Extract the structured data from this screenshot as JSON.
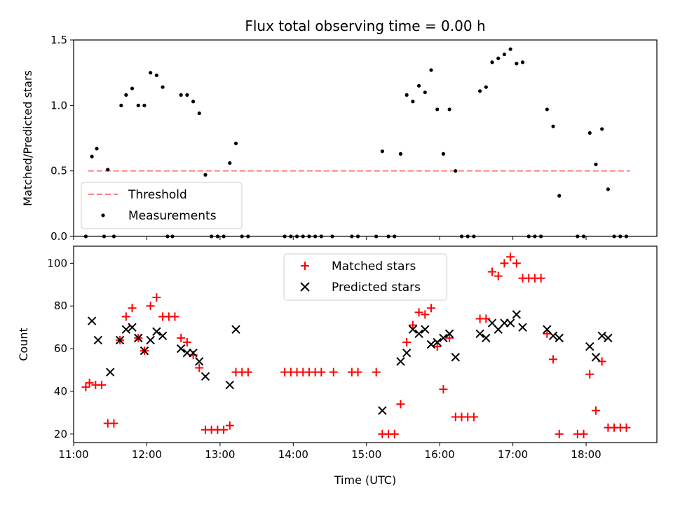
{
  "chart_data": [
    {
      "type": "scatter",
      "title": "Flux total observing time = 0.00 h",
      "xlabel": "",
      "ylabel": "Matched/Predicted stars",
      "ylim": [
        0,
        1.5
      ],
      "yticks": [
        "0.0",
        "0.5",
        "1.0",
        "1.5"
      ],
      "xlim": [
        "11:00",
        "18:58"
      ],
      "x_unit": "time (UTC, HH:MM)",
      "grid": false,
      "legend_position": "lower-left",
      "series": [
        {
          "name": "Threshold",
          "style": "dashed line",
          "color": "#ff7f7f",
          "x": [
            "11:12",
            "18:36"
          ],
          "y": [
            0.5,
            0.5
          ]
        },
        {
          "name": "Measurements",
          "style": "point",
          "color": "#000000",
          "points": [
            [
              "11:10",
              0.0
            ],
            [
              "11:15",
              0.61
            ],
            [
              "11:19",
              0.67
            ],
            [
              "11:25",
              0.0
            ],
            [
              "11:28",
              0.51
            ],
            [
              "11:33",
              0.0
            ],
            [
              "11:39",
              1.0
            ],
            [
              "11:43",
              1.08
            ],
            [
              "11:48",
              1.13
            ],
            [
              "11:53",
              1.0
            ],
            [
              "11:58",
              1.0
            ],
            [
              "12:03",
              1.25
            ],
            [
              "12:08",
              1.23
            ],
            [
              "12:13",
              1.14
            ],
            [
              "12:17",
              0.0
            ],
            [
              "12:21",
              0.0
            ],
            [
              "12:28",
              1.08
            ],
            [
              "12:33",
              1.08
            ],
            [
              "12:38",
              1.03
            ],
            [
              "12:43",
              0.94
            ],
            [
              "12:48",
              0.47
            ],
            [
              "12:53",
              0.0
            ],
            [
              "12:58",
              0.0
            ],
            [
              "13:03",
              0.0
            ],
            [
              "13:08",
              0.56
            ],
            [
              "13:13",
              0.71
            ],
            [
              "13:18",
              0.0
            ],
            [
              "13:23",
              0.0
            ],
            [
              "13:53",
              0.0
            ],
            [
              "13:58",
              0.0
            ],
            [
              "14:03",
              0.0
            ],
            [
              "14:08",
              0.0
            ],
            [
              "14:13",
              0.0
            ],
            [
              "14:18",
              0.0
            ],
            [
              "14:23",
              0.0
            ],
            [
              "14:32",
              0.0
            ],
            [
              "14:48",
              0.0
            ],
            [
              "14:53",
              0.0
            ],
            [
              "15:08",
              0.0
            ],
            [
              "15:13",
              0.65
            ],
            [
              "15:18",
              0.0
            ],
            [
              "15:23",
              0.0
            ],
            [
              "15:28",
              0.63
            ],
            [
              "15:33",
              1.08
            ],
            [
              "15:38",
              1.03
            ],
            [
              "15:43",
              1.15
            ],
            [
              "15:48",
              1.1
            ],
            [
              "15:53",
              1.27
            ],
            [
              "15:58",
              0.97
            ],
            [
              "16:03",
              0.63
            ],
            [
              "16:08",
              0.97
            ],
            [
              "16:13",
              0.5
            ],
            [
              "16:18",
              0.0
            ],
            [
              "16:23",
              0.0
            ],
            [
              "16:28",
              0.0
            ],
            [
              "16:33",
              1.11
            ],
            [
              "16:38",
              1.14
            ],
            [
              "16:43",
              1.33
            ],
            [
              "16:48",
              1.36
            ],
            [
              "16:53",
              1.39
            ],
            [
              "16:58",
              1.43
            ],
            [
              "17:03",
              1.32
            ],
            [
              "17:08",
              1.33
            ],
            [
              "17:13",
              0.0
            ],
            [
              "17:18",
              0.0
            ],
            [
              "17:23",
              0.0
            ],
            [
              "17:28",
              0.97
            ],
            [
              "17:33",
              0.84
            ],
            [
              "17:38",
              0.31
            ],
            [
              "17:53",
              0.0
            ],
            [
              "17:58",
              0.0
            ],
            [
              "18:03",
              0.79
            ],
            [
              "18:08",
              0.55
            ],
            [
              "18:13",
              0.82
            ],
            [
              "18:18",
              0.36
            ],
            [
              "18:23",
              0.0
            ],
            [
              "18:28",
              0.0
            ],
            [
              "18:33",
              0.0
            ]
          ]
        }
      ]
    },
    {
      "type": "scatter",
      "title": "",
      "xlabel": "Time (UTC)",
      "ylabel": "Count",
      "ylim": [
        16,
        108
      ],
      "yticks": [
        "20",
        "40",
        "60",
        "80",
        "100"
      ],
      "xlim": [
        "11:00",
        "18:58"
      ],
      "xticks": [
        "11:00",
        "12:00",
        "13:00",
        "14:00",
        "15:00",
        "16:00",
        "17:00",
        "18:00"
      ],
      "grid": false,
      "legend_position": "top-center",
      "series": [
        {
          "name": "Matched stars",
          "marker": "plus",
          "color": "#ff0000",
          "points": [
            [
              "11:10",
              42
            ],
            [
              "11:13",
              44
            ],
            [
              "11:18",
              43
            ],
            [
              "11:23",
              43
            ],
            [
              "11:28",
              25
            ],
            [
              "11:33",
              25
            ],
            [
              "11:38",
              64
            ],
            [
              "11:43",
              75
            ],
            [
              "11:48",
              79
            ],
            [
              "11:53",
              65
            ],
            [
              "11:58",
              59
            ],
            [
              "12:03",
              80
            ],
            [
              "12:08",
              84
            ],
            [
              "12:13",
              75
            ],
            [
              "12:18",
              75
            ],
            [
              "12:23",
              75
            ],
            [
              "12:28",
              65
            ],
            [
              "12:33",
              63
            ],
            [
              "12:38",
              57
            ],
            [
              "12:43",
              51
            ],
            [
              "12:48",
              22
            ],
            [
              "12:53",
              22
            ],
            [
              "12:58",
              22
            ],
            [
              "13:03",
              22
            ],
            [
              "13:08",
              24
            ],
            [
              "13:13",
              49
            ],
            [
              "13:18",
              49
            ],
            [
              "13:23",
              49
            ],
            [
              "13:53",
              49
            ],
            [
              "13:58",
              49
            ],
            [
              "14:03",
              49
            ],
            [
              "14:08",
              49
            ],
            [
              "14:13",
              49
            ],
            [
              "14:18",
              49
            ],
            [
              "14:23",
              49
            ],
            [
              "14:33",
              49
            ],
            [
              "14:48",
              49
            ],
            [
              "14:53",
              49
            ],
            [
              "15:08",
              49
            ],
            [
              "15:13",
              20
            ],
            [
              "15:18",
              20
            ],
            [
              "15:23",
              20
            ],
            [
              "15:28",
              34
            ],
            [
              "15:33",
              63
            ],
            [
              "15:38",
              71
            ],
            [
              "15:43",
              77
            ],
            [
              "15:48",
              76
            ],
            [
              "15:53",
              79
            ],
            [
              "15:58",
              61
            ],
            [
              "16:03",
              41
            ],
            [
              "16:08",
              65
            ],
            [
              "16:13",
              28
            ],
            [
              "16:18",
              28
            ],
            [
              "16:23",
              28
            ],
            [
              "16:28",
              28
            ],
            [
              "16:33",
              74
            ],
            [
              "16:38",
              74
            ],
            [
              "16:43",
              96
            ],
            [
              "16:48",
              94
            ],
            [
              "16:53",
              100
            ],
            [
              "16:58",
              103
            ],
            [
              "17:03",
              100
            ],
            [
              "17:08",
              93
            ],
            [
              "17:13",
              93
            ],
            [
              "17:18",
              93
            ],
            [
              "17:23",
              93
            ],
            [
              "17:28",
              67
            ],
            [
              "17:33",
              55
            ],
            [
              "17:38",
              20
            ],
            [
              "17:53",
              20
            ],
            [
              "17:58",
              20
            ],
            [
              "18:03",
              48
            ],
            [
              "18:08",
              31
            ],
            [
              "18:13",
              54
            ],
            [
              "18:18",
              23
            ],
            [
              "18:23",
              23
            ],
            [
              "18:28",
              23
            ],
            [
              "18:33",
              23
            ]
          ]
        },
        {
          "name": "Predicted stars",
          "marker": "x",
          "color": "#000000",
          "points": [
            [
              "11:15",
              73
            ],
            [
              "11:20",
              64
            ],
            [
              "11:30",
              49
            ],
            [
              "11:38",
              64
            ],
            [
              "11:43",
              69
            ],
            [
              "11:48",
              70
            ],
            [
              "11:53",
              65
            ],
            [
              "11:58",
              59
            ],
            [
              "12:03",
              64
            ],
            [
              "12:08",
              68
            ],
            [
              "12:13",
              66
            ],
            [
              "12:28",
              60
            ],
            [
              "12:33",
              58
            ],
            [
              "12:38",
              58
            ],
            [
              "12:43",
              54
            ],
            [
              "12:48",
              47
            ],
            [
              "13:08",
              43
            ],
            [
              "13:13",
              69
            ],
            [
              "15:13",
              31
            ],
            [
              "15:28",
              54
            ],
            [
              "15:33",
              58
            ],
            [
              "15:38",
              69
            ],
            [
              "15:43",
              67
            ],
            [
              "15:48",
              69
            ],
            [
              "15:53",
              62
            ],
            [
              "15:58",
              63
            ],
            [
              "16:03",
              65
            ],
            [
              "16:08",
              67
            ],
            [
              "16:13",
              56
            ],
            [
              "16:33",
              67
            ],
            [
              "16:38",
              65
            ],
            [
              "16:43",
              72
            ],
            [
              "16:48",
              69
            ],
            [
              "16:53",
              72
            ],
            [
              "16:58",
              72
            ],
            [
              "17:03",
              76
            ],
            [
              "17:08",
              70
            ],
            [
              "17:28",
              69
            ],
            [
              "17:33",
              66
            ],
            [
              "17:38",
              65
            ],
            [
              "18:03",
              61
            ],
            [
              "18:08",
              56
            ],
            [
              "18:13",
              66
            ],
            [
              "18:18",
              65
            ]
          ]
        }
      ]
    }
  ]
}
